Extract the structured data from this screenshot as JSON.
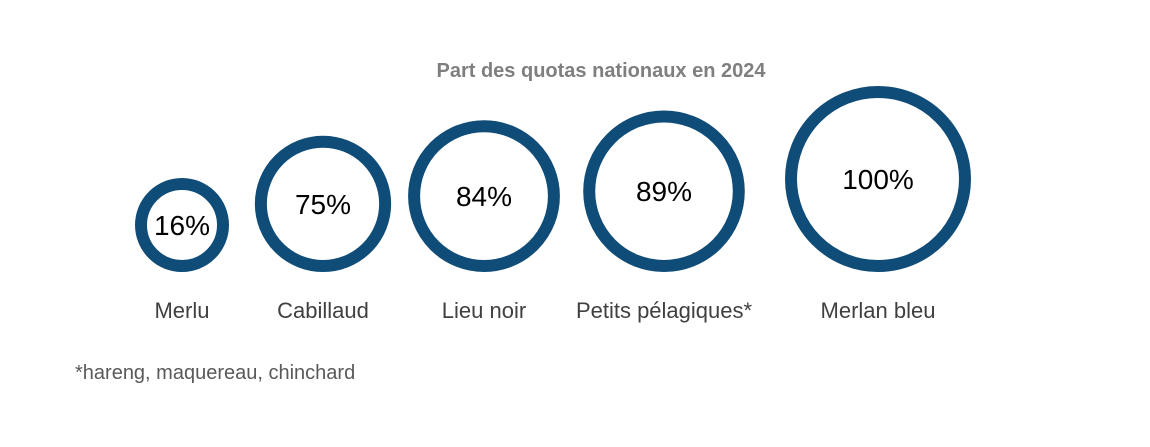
{
  "chart_data": {
    "type": "bubble",
    "title": "Part des quotas nationaux en 2024",
    "unit": "%",
    "categories": [
      "Merlu",
      "Cabillaud",
      "Lieu noir",
      "Petits pélagiques*",
      "Merlan bleu"
    ],
    "values": [
      16,
      75,
      84,
      89,
      100
    ],
    "value_labels": [
      "16%",
      "75%",
      "84%",
      "89%",
      "100%"
    ],
    "footnote": "*hareng, maquereau, chinchard",
    "colors": {
      "ring": "#0f4c78",
      "value_text": "#000000",
      "category_text": "#404040",
      "title_text": "#7f7f7f",
      "footnote_text": "#595959"
    }
  }
}
